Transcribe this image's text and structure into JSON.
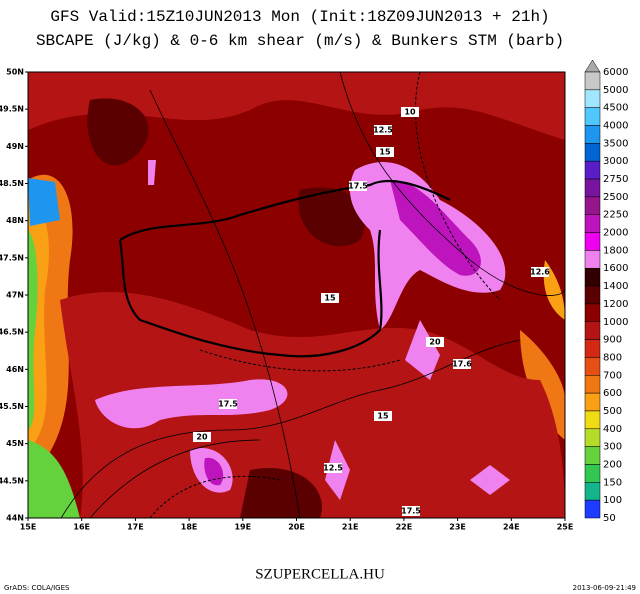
{
  "header": {
    "lines": [
      "GFS Valid:15Z10JUN2013 Mon (Init:18Z09JUN2013 + 21h)",
      "SBCAPE (J/kg) & 0-6 km shear (m/s) & Bunkers STM (barb)"
    ]
  },
  "axes": {
    "lat_labels": [
      "50N",
      "49.5N",
      "49N",
      "48.5N",
      "48N",
      "47.5N",
      "47N",
      "46.5N",
      "46N",
      "45.5N",
      "45N",
      "44.5N",
      "44N"
    ],
    "lon_labels": [
      "15E",
      "16E",
      "17E",
      "18E",
      "19E",
      "20E",
      "21E",
      "22E",
      "23E",
      "24E",
      "25E"
    ]
  },
  "colorbar": {
    "levels": [
      "6000",
      "5000",
      "4500",
      "4000",
      "3500",
      "3000",
      "2750",
      "2500",
      "2250",
      "2000",
      "1800",
      "1600",
      "1400",
      "1200",
      "1000",
      "900",
      "800",
      "700",
      "600",
      "500",
      "400",
      "300",
      "200",
      "150",
      "100",
      "50"
    ],
    "colors": [
      "#c8c8c8",
      "#a0e6ff",
      "#50c8ff",
      "#1e96f0",
      "#0064d2",
      "#5a1ec8",
      "#7814a0",
      "#96148c",
      "#be14be",
      "#f000f0",
      "#f082f0",
      "#320000",
      "#5a0000",
      "#8c0000",
      "#b41414",
      "#d22814",
      "#e65014",
      "#f07814",
      "#faa014",
      "#f0dc14",
      "#b4dc28",
      "#64d23c",
      "#32c850",
      "#14b48c",
      "#1e3cff"
    ]
  },
  "contour_labels": [
    "10",
    "12.5",
    "15",
    "17.5",
    "12.6",
    "15",
    "20",
    "17.6",
    "17.5",
    "20",
    "15",
    "12.5",
    "17.5"
  ],
  "footer": {
    "site": "SZUPERCELLA.HU",
    "credit": "GrADS: COLA/IGES",
    "timestamp": "2013-06-09-21:49"
  }
}
